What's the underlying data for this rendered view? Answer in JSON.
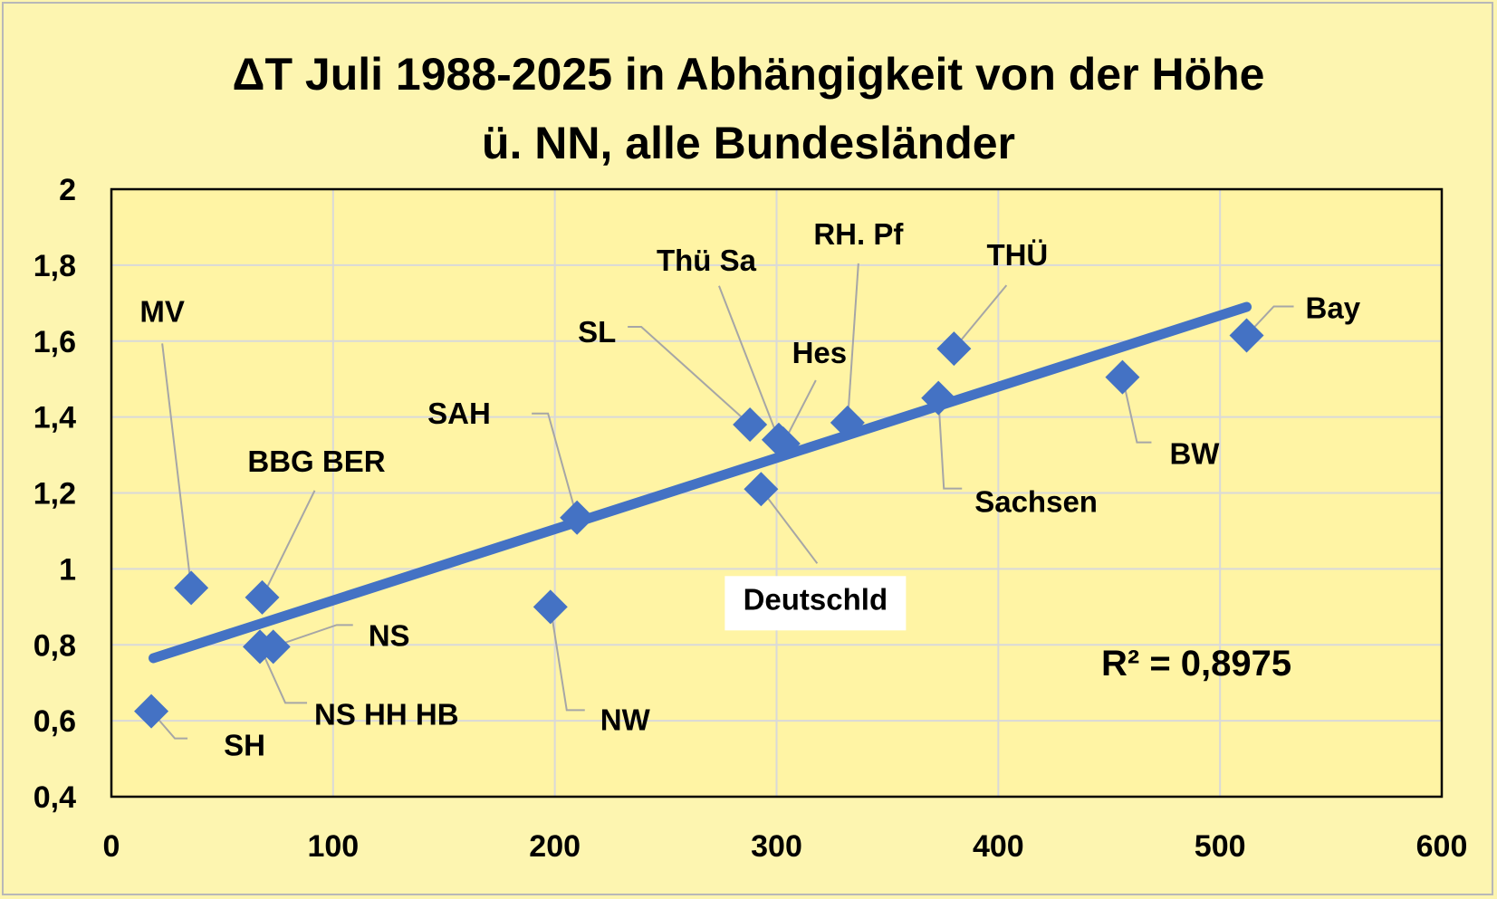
{
  "chart_data": {
    "type": "scatter",
    "title_line1": "ΔT Juli 1988-2025 in Abhängigkeit von der Höhe",
    "title_line2": "ü. NN, alle Bundesländer",
    "xlabel": "",
    "ylabel": "",
    "xlim": [
      0,
      600
    ],
    "ylim": [
      0.4,
      2
    ],
    "x_ticks": [
      0,
      100,
      200,
      300,
      400,
      500,
      600
    ],
    "x_tick_labels": [
      "0",
      "100",
      "200",
      "300",
      "400",
      "500",
      "600"
    ],
    "y_ticks": [
      0.4,
      0.6,
      0.8,
      1.0,
      1.2,
      1.4,
      1.6,
      1.8,
      2.0
    ],
    "y_tick_labels": [
      "0,4",
      "0,6",
      "0,8",
      "1",
      "1,2",
      "1,4",
      "1,6",
      "1,8",
      "2"
    ],
    "grid": true,
    "marker": "diamond",
    "marker_color": "#4472c4",
    "trendline": {
      "type": "linear",
      "x": [
        19,
        512
      ],
      "y": [
        0.765,
        1.69
      ],
      "color": "#4472c4"
    },
    "r_squared_label": "R² = 0,8975",
    "points": [
      {
        "label": "SH",
        "x": 18,
        "y": 0.625
      },
      {
        "label": "MV",
        "x": 36,
        "y": 0.95
      },
      {
        "label": "BBG BER",
        "x": 68,
        "y": 0.925
      },
      {
        "label": "NS HH HB",
        "x": 67,
        "y": 0.795
      },
      {
        "label": "NS",
        "x": 73,
        "y": 0.795
      },
      {
        "label": "NW",
        "x": 198,
        "y": 0.9
      },
      {
        "label": "SAH",
        "x": 210,
        "y": 1.135
      },
      {
        "label": "SL",
        "x": 288,
        "y": 1.38
      },
      {
        "label": "Deutschld",
        "x": 293,
        "y": 1.21
      },
      {
        "label": "Thü Sa",
        "x": 301,
        "y": 1.34
      },
      {
        "label": "Hes",
        "x": 303,
        "y": 1.33
      },
      {
        "label": "RH. Pf",
        "x": 332,
        "y": 1.385
      },
      {
        "label": "Sachsen",
        "x": 373,
        "y": 1.45
      },
      {
        "label": "THÜ",
        "x": 380,
        "y": 1.58
      },
      {
        "label": "BW",
        "x": 456,
        "y": 1.505
      },
      {
        "label": "Bay",
        "x": 512,
        "y": 1.615
      }
    ]
  }
}
